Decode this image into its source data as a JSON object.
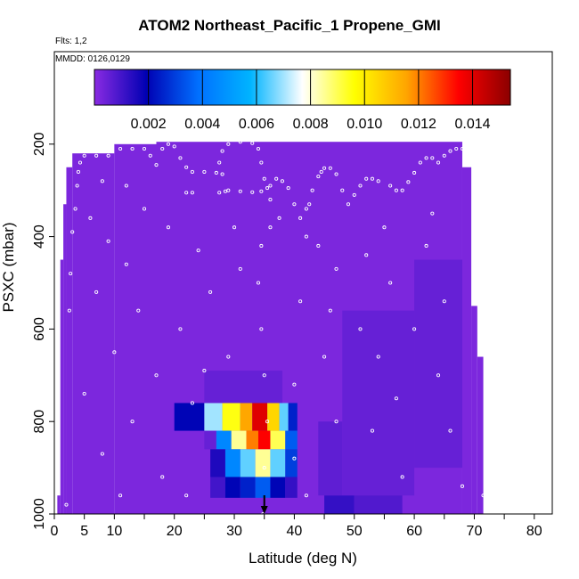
{
  "chart_data": {
    "type": "heatmap",
    "title": "ATOM2 Northeast_Pacific_1 Propene_GMI",
    "notes": {
      "flights": "Flts: 1,2",
      "dates": "MMDD: 0126,0129"
    },
    "xlabel": "Latitude (deg N)",
    "ylabel": "PSXC (mbar)",
    "xlim": [
      0,
      83
    ],
    "ylim": [
      1000,
      0
    ],
    "x_ticks": [
      0,
      5,
      10,
      20,
      30,
      40,
      50,
      60,
      70,
      80
    ],
    "x_tick_labels": [
      "0",
      "5",
      "10",
      "20",
      "30",
      "40",
      "50",
      "60",
      "70",
      "80"
    ],
    "x_minor_ticks": [
      15,
      25,
      35,
      45,
      55,
      65,
      75,
      85
    ],
    "y_ticks": [
      200,
      400,
      600,
      800,
      1000
    ],
    "y_tick_labels": [
      "200",
      "400",
      "600",
      "800",
      "1000"
    ],
    "colorbar": {
      "min": 0,
      "max": 0.0154,
      "tick_values": [
        0.002,
        0.004,
        0.006,
        0.008,
        0.01,
        0.012,
        0.014
      ],
      "tick_labels": [
        "0.002",
        "0.004",
        "0.006",
        "0.008",
        "0.010",
        "0.012",
        "0.014"
      ],
      "colors": [
        "#8a2be2",
        "#0000b3",
        "#0070ff",
        "#00b4ff",
        "#ffffff",
        "#ffff00",
        "#ffa500",
        "#ff0000",
        "#8b0000"
      ]
    },
    "background_value": 0.0002,
    "coverage": [
      {
        "x0": 0.5,
        "x1": 1,
        "top": 960
      },
      {
        "x0": 1,
        "x1": 1.5,
        "top": 450
      },
      {
        "x0": 1.5,
        "x1": 2,
        "top": 330
      },
      {
        "x0": 2,
        "x1": 3,
        "top": 250
      },
      {
        "x0": 3,
        "x1": 10,
        "top": 220
      },
      {
        "x0": 10,
        "x1": 17,
        "top": 200
      },
      {
        "x0": 17,
        "x1": 68,
        "top": 195
      },
      {
        "x0": 68,
        "x1": 69.5,
        "top": 250
      },
      {
        "x0": 69.5,
        "x1": 70.5,
        "top": 550
      },
      {
        "x0": 70.5,
        "x1": 71.5,
        "top": 660
      }
    ],
    "enhanced_cells": [
      {
        "x0": 20,
        "x1": 25,
        "p0": 760,
        "p1": 820,
        "v": 0.002
      },
      {
        "x0": 25,
        "x1": 28,
        "p0": 760,
        "p1": 820,
        "v": 0.007
      },
      {
        "x0": 28,
        "x1": 31,
        "p0": 760,
        "p1": 820,
        "v": 0.0095
      },
      {
        "x0": 31,
        "x1": 33,
        "p0": 760,
        "p1": 820,
        "v": 0.0115
      },
      {
        "x0": 33,
        "x1": 35.5,
        "p0": 760,
        "p1": 820,
        "v": 0.014
      },
      {
        "x0": 35.5,
        "x1": 37.5,
        "p0": 760,
        "p1": 820,
        "v": 0.0105
      },
      {
        "x0": 37.5,
        "x1": 39,
        "p0": 760,
        "p1": 820,
        "v": 0.0065
      },
      {
        "x0": 39,
        "x1": 40.5,
        "p0": 760,
        "p1": 820,
        "v": 0.0025
      },
      {
        "x0": 25,
        "x1": 27,
        "p0": 820,
        "p1": 860,
        "v": 0.0005
      },
      {
        "x0": 27,
        "x1": 29.5,
        "p0": 820,
        "p1": 860,
        "v": 0.0045
      },
      {
        "x0": 29.5,
        "x1": 32,
        "p0": 820,
        "p1": 860,
        "v": 0.0085
      },
      {
        "x0": 32,
        "x1": 34,
        "p0": 820,
        "p1": 860,
        "v": 0.012
      },
      {
        "x0": 34,
        "x1": 36,
        "p0": 820,
        "p1": 860,
        "v": 0.0135
      },
      {
        "x0": 36,
        "x1": 38.5,
        "p0": 820,
        "p1": 860,
        "v": 0.009
      },
      {
        "x0": 38.5,
        "x1": 40.5,
        "p0": 820,
        "p1": 860,
        "v": 0.0035
      },
      {
        "x0": 26,
        "x1": 28.5,
        "p0": 860,
        "p1": 920,
        "v": 0.0015
      },
      {
        "x0": 28.5,
        "x1": 31,
        "p0": 860,
        "p1": 920,
        "v": 0.0045
      },
      {
        "x0": 31,
        "x1": 33.5,
        "p0": 860,
        "p1": 920,
        "v": 0.0065
      },
      {
        "x0": 33.5,
        "x1": 36,
        "p0": 860,
        "p1": 920,
        "v": 0.0085
      },
      {
        "x0": 36,
        "x1": 38.5,
        "p0": 860,
        "p1": 920,
        "v": 0.0065
      },
      {
        "x0": 38.5,
        "x1": 40.5,
        "p0": 860,
        "p1": 920,
        "v": 0.003
      },
      {
        "x0": 26,
        "x1": 28.5,
        "p0": 920,
        "p1": 965,
        "v": 0.001
      },
      {
        "x0": 28.5,
        "x1": 31,
        "p0": 920,
        "p1": 965,
        "v": 0.002
      },
      {
        "x0": 31,
        "x1": 33.5,
        "p0": 920,
        "p1": 965,
        "v": 0.0025
      },
      {
        "x0": 33.5,
        "x1": 36,
        "p0": 920,
        "p1": 965,
        "v": 0.0035
      },
      {
        "x0": 36,
        "x1": 38.5,
        "p0": 920,
        "p1": 965,
        "v": 0.002
      },
      {
        "x0": 38.5,
        "x1": 40.5,
        "p0": 920,
        "p1": 965,
        "v": 0.0012
      },
      {
        "x0": 25,
        "x1": 38,
        "p0": 690,
        "p1": 760,
        "v": 0.0005
      },
      {
        "x0": 44,
        "x1": 48,
        "p0": 800,
        "p1": 960,
        "v": 0.0006
      },
      {
        "x0": 48,
        "x1": 60,
        "p0": 560,
        "p1": 960,
        "v": 0.0005
      },
      {
        "x0": 60,
        "x1": 68,
        "p0": 450,
        "p1": 900,
        "v": 0.0005
      },
      {
        "x0": 45,
        "x1": 50,
        "p0": 960,
        "p1": 1000,
        "v": 0.0012
      },
      {
        "x0": 50,
        "x1": 58,
        "p0": 960,
        "p1": 1000,
        "v": 0.0008
      }
    ],
    "flight_track": [
      [
        2,
        980
      ],
      [
        2.5,
        560
      ],
      [
        2.7,
        480
      ],
      [
        3,
        390
      ],
      [
        3.5,
        340
      ],
      [
        3.8,
        290
      ],
      [
        4,
        260
      ],
      [
        4.3,
        240
      ],
      [
        5,
        225
      ],
      [
        7,
        225
      ],
      [
        9,
        225
      ],
      [
        11,
        210
      ],
      [
        13,
        210
      ],
      [
        15,
        210
      ],
      [
        16,
        225
      ],
      [
        17,
        245
      ],
      [
        18,
        210
      ],
      [
        19,
        200
      ],
      [
        20,
        205
      ],
      [
        21,
        230
      ],
      [
        22,
        250
      ],
      [
        23,
        260
      ],
      [
        25,
        260
      ],
      [
        27,
        262
      ],
      [
        28,
        265
      ],
      [
        27.5,
        240
      ],
      [
        28,
        215
      ],
      [
        29,
        200
      ],
      [
        31,
        195
      ],
      [
        33,
        198
      ],
      [
        34,
        210
      ],
      [
        34.5,
        240
      ],
      [
        35,
        275
      ],
      [
        35.5,
        295
      ],
      [
        34.5,
        302
      ],
      [
        33,
        304
      ],
      [
        31,
        302
      ],
      [
        29,
        300
      ],
      [
        28.5,
        302
      ],
      [
        27.5,
        305
      ],
      [
        22,
        305
      ],
      [
        23,
        305
      ],
      [
        36,
        320
      ],
      [
        37.5,
        360
      ],
      [
        36,
        380
      ],
      [
        34.5,
        420
      ],
      [
        34,
        500
      ],
      [
        34.5,
        600
      ],
      [
        35,
        700
      ],
      [
        35.5,
        800
      ],
      [
        35,
        900
      ],
      [
        34.8,
        1000
      ],
      [
        36,
        290
      ],
      [
        37,
        275
      ],
      [
        38,
        280
      ],
      [
        39,
        295
      ],
      [
        40,
        330
      ],
      [
        41,
        360
      ],
      [
        42,
        340
      ],
      [
        42.5,
        330
      ],
      [
        43,
        300
      ],
      [
        44,
        270
      ],
      [
        44.5,
        260
      ],
      [
        45,
        252
      ],
      [
        46,
        252
      ],
      [
        47,
        265
      ],
      [
        48,
        300
      ],
      [
        49,
        330
      ],
      [
        50,
        310
      ],
      [
        51,
        290
      ],
      [
        52,
        275
      ],
      [
        53,
        275
      ],
      [
        54,
        280
      ],
      [
        56,
        290
      ],
      [
        57,
        300
      ],
      [
        58,
        300
      ],
      [
        59,
        282
      ],
      [
        60,
        262
      ],
      [
        61,
        240
      ],
      [
        62,
        230
      ],
      [
        63,
        230
      ],
      [
        64,
        240
      ],
      [
        65,
        225
      ],
      [
        66,
        215
      ],
      [
        67,
        210
      ],
      [
        68,
        210
      ],
      [
        69,
        240
      ],
      [
        70,
        300
      ],
      [
        70.5,
        380
      ],
      [
        71,
        500
      ],
      [
        71.5,
        600
      ],
      [
        72,
        900
      ],
      [
        71.5,
        960
      ],
      [
        8,
        280
      ],
      [
        12,
        290
      ],
      [
        15,
        340
      ],
      [
        6,
        360
      ],
      [
        9,
        410
      ],
      [
        12,
        460
      ],
      [
        7,
        520
      ],
      [
        14,
        560
      ],
      [
        10,
        650
      ],
      [
        5,
        740
      ],
      [
        13,
        800
      ],
      [
        8,
        870
      ],
      [
        18,
        920
      ],
      [
        22,
        960
      ],
      [
        19,
        380
      ],
      [
        24,
        430
      ],
      [
        21,
        600
      ],
      [
        26,
        520
      ],
      [
        30,
        380
      ],
      [
        29,
        660
      ],
      [
        17,
        700
      ],
      [
        40,
        720
      ],
      [
        40,
        880
      ],
      [
        42,
        960
      ],
      [
        44,
        420
      ],
      [
        41,
        540
      ],
      [
        45,
        660
      ],
      [
        47,
        800
      ],
      [
        46,
        560
      ],
      [
        52,
        440
      ],
      [
        51,
        600
      ],
      [
        55,
        380
      ],
      [
        56,
        500
      ],
      [
        57,
        750
      ],
      [
        60,
        600
      ],
      [
        62,
        420
      ],
      [
        63,
        350
      ],
      [
        65,
        540
      ],
      [
        64,
        700
      ],
      [
        66,
        820
      ],
      [
        68,
        940
      ],
      [
        58,
        920
      ],
      [
        53,
        820
      ],
      [
        23,
        760
      ],
      [
        25,
        690
      ],
      [
        31,
        470
      ],
      [
        42,
        400
      ],
      [
        47,
        470
      ],
      [
        54,
        660
      ],
      [
        11,
        960
      ]
    ],
    "marker_latitude": 35
  }
}
